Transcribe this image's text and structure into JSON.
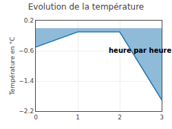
{
  "chart_data": {
    "type": "area",
    "title": "Evolution de la température",
    "ylabel": "Température en °C",
    "annotation": "heure par heure",
    "x": [
      0,
      1,
      2,
      3
    ],
    "values": [
      -0.5,
      -0.1,
      -0.1,
      -1.9
    ],
    "xlim": [
      0,
      3
    ],
    "xticks": [
      0,
      1,
      2,
      3
    ],
    "ylim": [
      -2.2,
      0.2
    ],
    "yticks": [
      0.2,
      -0.6,
      -1.4,
      -2.2
    ],
    "grid": true
  }
}
